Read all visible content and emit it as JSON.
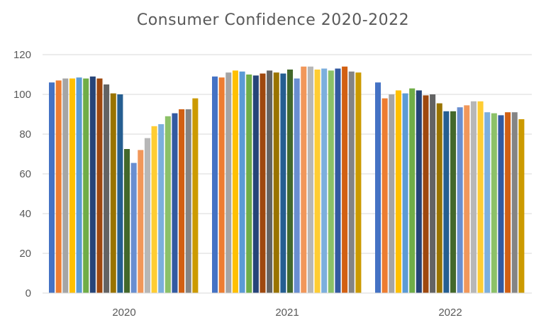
{
  "chart_data": {
    "type": "bar",
    "title": "Consumer Confidence 2020-2022",
    "xlabel": "",
    "ylabel": "",
    "ylim": [
      0,
      120
    ],
    "yticks": [
      0,
      20,
      40,
      60,
      80,
      100,
      120
    ],
    "grid": true,
    "legend": "none",
    "categories": [
      "2020",
      "2021",
      "2022"
    ],
    "palette": [
      "#4472C4",
      "#ED7D31",
      "#A5A5A5",
      "#FFC000",
      "#5B9BD5",
      "#70AD47",
      "#264478",
      "#9E480E",
      "#636363",
      "#997300",
      "#255E91",
      "#43682B",
      "#698ED0",
      "#F1975A",
      "#B7B7B7",
      "#FFCD33",
      "#7CAFDD",
      "#8CC168",
      "#335AA1",
      "#D26012",
      "#848484",
      "#CC9A00"
    ],
    "values": [
      [
        106,
        107,
        108,
        108,
        108.5,
        108,
        109,
        108,
        105,
        100.5,
        100,
        72.5,
        65.5,
        72,
        78,
        84,
        85,
        89,
        90.5,
        92.5,
        92.5,
        98
      ],
      [
        109,
        108.5,
        111,
        112,
        111.5,
        110,
        109.5,
        110.5,
        112,
        111,
        110.5,
        112.5,
        108,
        114,
        114,
        112.5,
        113,
        112,
        113,
        114,
        111.5,
        111
      ],
      [
        106,
        98,
        100,
        102,
        100.5,
        103,
        102,
        99.5,
        100,
        95.5,
        91.5,
        91.5,
        93.5,
        94.5,
        96.5,
        96.5,
        91,
        90.5,
        89.5,
        91,
        91,
        87.5
      ]
    ]
  }
}
